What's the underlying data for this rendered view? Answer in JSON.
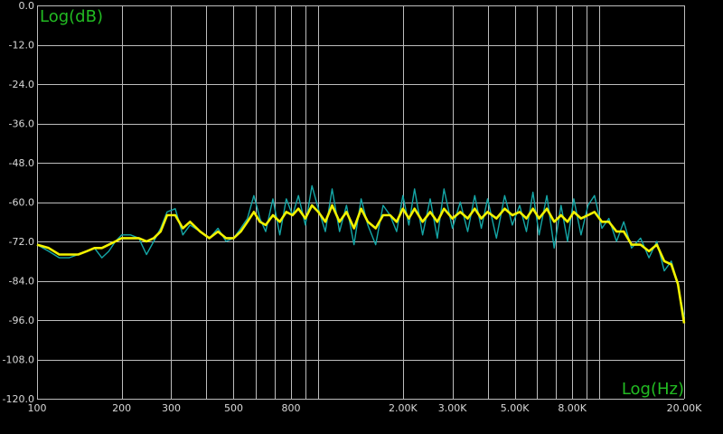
{
  "chart_data": {
    "type": "line",
    "title": "",
    "ylabel": "Log(dB)",
    "xlabel": "Log(Hz)",
    "xscale": "log",
    "xlim": [
      100,
      20000
    ],
    "ylim": [
      -120,
      0
    ],
    "grid": true,
    "y_ticks": [
      {
        "value": 0,
        "label": "0.0"
      },
      {
        "value": -12,
        "label": "-12.0"
      },
      {
        "value": -24,
        "label": "-24.0"
      },
      {
        "value": -36,
        "label": "-36.0"
      },
      {
        "value": -48,
        "label": "-48.0"
      },
      {
        "value": -60,
        "label": "-60.0"
      },
      {
        "value": -72,
        "label": "-72.0"
      },
      {
        "value": -84,
        "label": "-84.0"
      },
      {
        "value": -96,
        "label": "-96.0"
      },
      {
        "value": -108,
        "label": "-108.0"
      },
      {
        "value": -120,
        "label": "-120.0"
      }
    ],
    "x_ticks": [
      {
        "value": 100,
        "label": "100"
      },
      {
        "value": 200,
        "label": "200"
      },
      {
        "value": 300,
        "label": "300"
      },
      {
        "value": 500,
        "label": "500"
      },
      {
        "value": 800,
        "label": "800"
      },
      {
        "value": 2000,
        "label": "2.00K"
      },
      {
        "value": 3000,
        "label": "3.00K"
      },
      {
        "value": 5000,
        "label": "5.00K"
      },
      {
        "value": 8000,
        "label": "8.00K"
      },
      {
        "value": 20000,
        "label": "20.00K"
      }
    ],
    "x_gridlines": [
      100,
      200,
      300,
      400,
      500,
      600,
      700,
      800,
      900,
      1000,
      2000,
      3000,
      4000,
      5000,
      6000,
      7000,
      8000,
      9000,
      10000,
      20000
    ],
    "colors": {
      "background": "#000000",
      "grid": "#bdbdbd",
      "tick_label": "#d8d8d8",
      "axis_title": "#22bb22"
    },
    "series": [
      {
        "color": "#14a6a6",
        "style": "raw",
        "x": [
          100,
          110,
          120,
          130,
          140,
          150,
          160,
          170,
          180,
          190,
          200,
          215,
          230,
          245,
          260,
          275,
          290,
          310,
          330,
          350,
          380,
          410,
          440,
          470,
          500,
          530,
          560,
          590,
          620,
          650,
          690,
          730,
          770,
          810,
          850,
          900,
          950,
          1000,
          1060,
          1120,
          1190,
          1260,
          1340,
          1420,
          1500,
          1600,
          1700,
          1800,
          1900,
          2000,
          2100,
          2200,
          2350,
          2500,
          2650,
          2800,
          3000,
          3200,
          3400,
          3600,
          3800,
          4000,
          4300,
          4600,
          4900,
          5200,
          5500,
          5800,
          6100,
          6500,
          6900,
          7300,
          7700,
          8100,
          8600,
          9100,
          9600,
          10200,
          10800,
          11500,
          12200,
          13000,
          14000,
          15000,
          16000,
          17000,
          18000,
          19000,
          20000
        ],
        "y": [
          -73,
          -75,
          -77,
          -77,
          -76,
          -75,
          -74,
          -77,
          -75,
          -72,
          -70,
          -70,
          -71,
          -76,
          -72,
          -68,
          -63,
          -62,
          -70,
          -67,
          -69,
          -71,
          -68,
          -72,
          -71,
          -68,
          -65,
          -58,
          -65,
          -69,
          -59,
          -70,
          -59,
          -64,
          -58,
          -67,
          -55,
          -62,
          -69,
          -56,
          -69,
          -61,
          -73,
          -59,
          -67,
          -73,
          -61,
          -64,
          -69,
          -58,
          -67,
          -56,
          -70,
          -59,
          -71,
          -56,
          -68,
          -60,
          -69,
          -58,
          -68,
          -59,
          -71,
          -58,
          -67,
          -61,
          -69,
          -57,
          -70,
          -58,
          -74,
          -61,
          -72,
          -59,
          -70,
          -61,
          -58,
          -68,
          -65,
          -72,
          -66,
          -74,
          -71,
          -77,
          -72,
          -81,
          -78,
          -85,
          -95
        ]
      },
      {
        "color": "#f2f200",
        "style": "smoothed",
        "x": [
          100,
          110,
          120,
          130,
          140,
          150,
          160,
          170,
          180,
          190,
          200,
          215,
          230,
          245,
          260,
          275,
          290,
          310,
          330,
          350,
          380,
          410,
          440,
          470,
          500,
          530,
          560,
          590,
          620,
          650,
          690,
          730,
          770,
          810,
          850,
          900,
          950,
          1000,
          1060,
          1120,
          1190,
          1260,
          1340,
          1420,
          1500,
          1600,
          1700,
          1800,
          1900,
          2000,
          2100,
          2200,
          2350,
          2500,
          2650,
          2800,
          3000,
          3200,
          3400,
          3600,
          3800,
          4000,
          4300,
          4600,
          4900,
          5200,
          5500,
          5800,
          6100,
          6500,
          6900,
          7300,
          7700,
          8100,
          8600,
          9100,
          9600,
          10200,
          10800,
          11500,
          12200,
          13000,
          14000,
          15000,
          16000,
          17000,
          18000,
          19000,
          20000
        ],
        "y": [
          -73,
          -74,
          -76,
          -76,
          -76,
          -75,
          -74,
          -74,
          -73,
          -72,
          -71,
          -71,
          -71,
          -72,
          -71,
          -69,
          -64,
          -64,
          -68,
          -66,
          -69,
          -71,
          -69,
          -71,
          -71,
          -69,
          -66,
          -63,
          -66,
          -67,
          -64,
          -66,
          -63,
          -64,
          -62,
          -65,
          -61,
          -63,
          -66,
          -61,
          -66,
          -63,
          -68,
          -62,
          -66,
          -68,
          -64,
          -64,
          -66,
          -62,
          -65,
          -62,
          -66,
          -63,
          -66,
          -62,
          -65,
          -63,
          -65,
          -62,
          -65,
          -63,
          -65,
          -62,
          -64,
          -63,
          -65,
          -62,
          -65,
          -62,
          -66,
          -64,
          -66,
          -63,
          -65,
          -64,
          -63,
          -66,
          -66,
          -69,
          -69,
          -73,
          -73,
          -75,
          -73,
          -78,
          -79,
          -85,
          -97
        ]
      }
    ]
  }
}
